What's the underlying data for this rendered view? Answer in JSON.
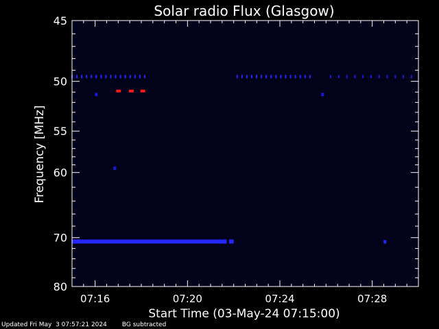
{
  "colors": {
    "background": "#000000",
    "plot_background": "#02021a",
    "axis": "#ffffff",
    "text": "#ffffff",
    "low_signal": "#1a1ad0",
    "mid_signal": "#2626ff",
    "high_signal": "#ff1a1a"
  },
  "chart_data": {
    "type": "heatmap",
    "title": "Solar radio Flux (Glasgow)",
    "xlabel": "Start Time (03-May-24 07:15:00)",
    "ylabel": "Frequency [MHz]",
    "x_unit": "minutes after 07:15:00",
    "xlim": [
      0,
      15
    ],
    "ylim": [
      45,
      80
    ],
    "y_scale": "reciprocal",
    "y_direction": "increasing downward",
    "x_ticks": [
      {
        "value": 1,
        "label": "07:16"
      },
      {
        "value": 5,
        "label": "07:20"
      },
      {
        "value": 9,
        "label": "07:24"
      },
      {
        "value": 13,
        "label": "07:28"
      }
    ],
    "y_ticks": [
      {
        "value": 45,
        "label": "45"
      },
      {
        "value": 50,
        "label": "50"
      },
      {
        "value": 55,
        "label": "55"
      },
      {
        "value": 60,
        "label": "60"
      },
      {
        "value": 70,
        "label": "70"
      },
      {
        "value": 80,
        "label": "80"
      }
    ],
    "features": [
      {
        "kind": "band",
        "freq": 70.7,
        "x_start": 0.0,
        "x_end": 6.7,
        "intensity": "high"
      },
      {
        "kind": "band",
        "freq": 70.7,
        "x_start": 6.8,
        "x_end": 7.0,
        "intensity": "high"
      },
      {
        "kind": "dot",
        "freq": 70.7,
        "x": 13.55,
        "intensity": "high"
      },
      {
        "kind": "dashes",
        "freq": 49.6,
        "x_start": 0.0,
        "x_end": 3.2,
        "spacing": 0.21,
        "intensity": "medium"
      },
      {
        "kind": "dashes",
        "freq": 49.6,
        "x_start": 7.15,
        "x_end": 10.3,
        "spacing": 0.21,
        "intensity": "medium"
      },
      {
        "kind": "dashes",
        "freq": 49.6,
        "x_start": 11.2,
        "x_end": 14.8,
        "spacing": 0.35,
        "intensity": "low"
      },
      {
        "kind": "dot",
        "freq": 51.2,
        "x": 1.05,
        "intensity": "low"
      },
      {
        "kind": "dot",
        "freq": 51.2,
        "x": 10.85,
        "intensity": "low"
      },
      {
        "kind": "dot",
        "freq": 59.4,
        "x": 1.85,
        "intensity": "low"
      },
      {
        "kind": "red_mark",
        "freq": 50.9,
        "x": 2.0
      },
      {
        "kind": "red_mark",
        "freq": 50.9,
        "x": 2.55
      },
      {
        "kind": "red_mark",
        "freq": 50.9,
        "x": 3.05
      }
    ]
  },
  "footer": {
    "updated": "Updated Fri May  3 07:57:21 2024",
    "note": "BG subtracted"
  }
}
